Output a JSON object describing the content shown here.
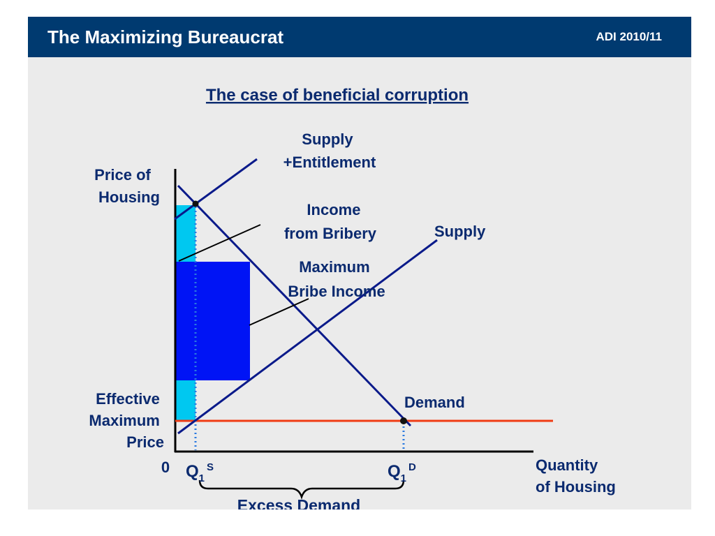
{
  "header": {
    "title": "The Maximizing Bureaucrat",
    "tag": "ADI 2010/11"
  },
  "slide": {
    "subtitle": "The case of beneficial corruption",
    "y_axis_label": [
      "Price of",
      "Housing"
    ],
    "x_axis_label": [
      "Quantity",
      "of Housing"
    ],
    "origin": "0",
    "price_label": [
      "Effective",
      "Maximum",
      "Price"
    ],
    "supply_entitlement_label": [
      "Supply",
      "+Entitlement"
    ],
    "income_bribery_label": [
      "Income",
      "from Bribery"
    ],
    "max_bribe_label": [
      "Maximum",
      "Bribe Income"
    ],
    "supply_label": "Supply",
    "demand_label": "Demand",
    "qs": {
      "main": "Q",
      "sub": "1",
      "sup": "S"
    },
    "qd": {
      "main": "Q",
      "sub": "1",
      "sup": "D"
    },
    "excess_demand_label": "Excess Demand"
  },
  "colors": {
    "header_bg": "#003a70",
    "content_bg": "#ebebeb",
    "text": "#0b2a6f",
    "curve": "#0a1a8a",
    "price_line": "#f03c14",
    "income_area": "#00c8f0",
    "max_bribe_area": "#0014f5",
    "guide_dotted": "#2a7ae0"
  }
}
